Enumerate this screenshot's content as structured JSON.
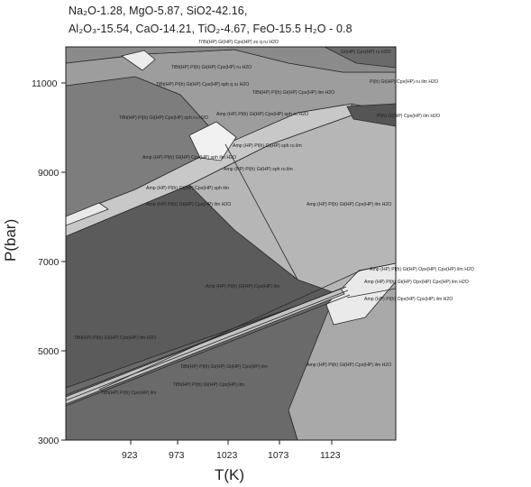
{
  "composition": {
    "line1": "Na₂O-1.28, MgO-5.87, SiO2-42.16,",
    "line2": "Al₂O₃-15.54, CaO-14.21, TiO₂-4.67, FeO-15.5 H₂O - 0.8"
  },
  "axes": {
    "x_label": "T(K)",
    "y_label": "P(bar)",
    "x_ticks": [
      "923",
      "973",
      "1023",
      "1073",
      "1123"
    ],
    "y_ticks": [
      "11000",
      "9000",
      "7000",
      "5000",
      "3000"
    ]
  },
  "field_labels": [
    "Ti'Bt(HP) Gt(HP) Cpx(HP) zo q ru H2O",
    "Gt(HP) Cpx(HP) ru H2O",
    "TiBt(HP) Pl(h) Gt(HP) Cpx(HP) ru H2O",
    "Pl(h) Gt(HP) Cpx(HP) ru ilm H2O",
    "TiBt(HP) Pl(h) Gt(HP) Cpx(HP) sph q ru H2O",
    "TiBt(HP) Pl(h) Gt(HP) Cpx(HP) ilm H2O",
    "Pl(h) Gt(HP) Cpx(HP) ilm H2O",
    "TiBt(HP) Pl(h) Gt(HP) Cpx(HP) sph ru H2O",
    "Amp (HP) Pl(h) Gt(HP) Cpx(HP) sph ru H2O",
    "Amp (HP) Pl(h) Gt(HP) sph ru ilm",
    "Amp (HP) Pl(h) Gt(HP) Cpx(HP) sph ilm H2O",
    "Amp (HP) Pl(h) Gt(HP) sph ru ilm",
    "Amp (HP) Pl(h) Gt(HP) Cpx(HP) sph ilm",
    "Amp (HP) Pl(h) Gt(HP) Cpx(HP) ilm H2O",
    "Amp (HP) Pl(h) Gt(HP) Cpx(HP) ilm",
    "Amp (HP) Pl(h) Gt(HP) Opx(HP) Cpx(HP) ilm H2O",
    "Amp (HP) Pl(h) Gt(HP) Opx(HP) Cpx(HP) ilm H2O",
    "Amp (HP) Pl(h) Opx(HP) Cpx(HP) ilm H2O",
    "TiBt(HP) Pl(h) Gt(HP) Cpx(HP) ilm H2O",
    "TiBt(HP) Pl(h) Gt(HP) Gt(HP) Cpx(HP) ilm",
    "TiBt(HP) Pl(h) Gt(HP) Cpx(HP) ilm",
    "TiBt(HP) Pl(h) Cpx(HP) ilm",
    "Amp (HP) Pl(h) Gt(HP) Cpx(HP) ilm H2O"
  ],
  "colors": {
    "c1": "#5b5b5b",
    "c2": "#6e6e6e",
    "c3": "#7f7f7f",
    "c4": "#909090",
    "c5": "#a2a2a2",
    "c6": "#b4b4b4",
    "c7": "#c7c7c7",
    "c8": "#e2e2e2"
  }
}
